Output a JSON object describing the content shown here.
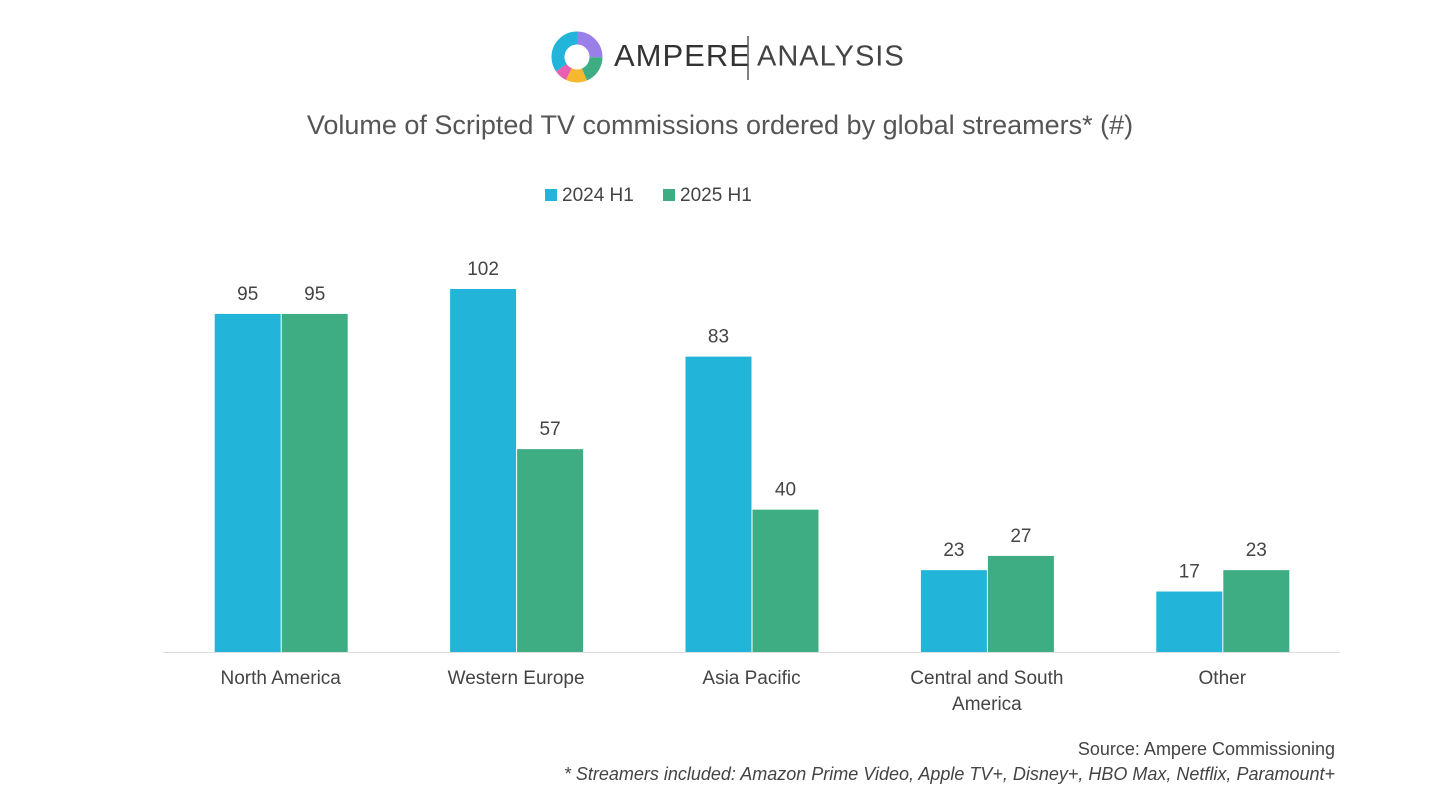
{
  "logo": {
    "brand": "AMPERE",
    "suffix": "ANALYSIS"
  },
  "chart_data": {
    "type": "bar",
    "title": "Volume of Scripted TV commissions ordered by global streamers* (#)",
    "categories": [
      "North America",
      "Western Europe",
      "Asia Pacific",
      "Central and South America",
      "Other"
    ],
    "series": [
      {
        "name": "2024 H1",
        "color": "#22b5d9",
        "values": [
          95,
          102,
          83,
          23,
          17
        ]
      },
      {
        "name": "2025 H1",
        "color": "#3fad84",
        "values": [
          95,
          57,
          40,
          27,
          23
        ]
      }
    ],
    "source": "Source: Ampere Commissioning",
    "note": "* Streamers included: Amazon Prime Video, Apple TV+, Disney+, HBO Max, Netflix, Paramount+"
  }
}
